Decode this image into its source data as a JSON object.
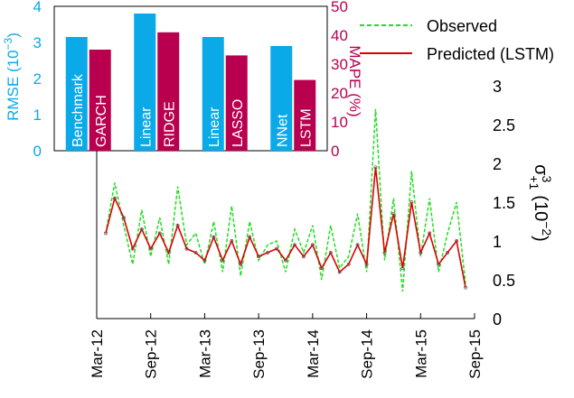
{
  "chart_data": [
    {
      "type": "line",
      "legend": {
        "placement": "top-right",
        "entries": [
          {
            "label": "Observed",
            "color": "#22dd22",
            "style": "dashed"
          },
          {
            "label": "Predicted (LSTM)",
            "color": "#dd0000",
            "style": "solid"
          }
        ]
      },
      "ylabel": "σ",
      "ylabel_sup": "3",
      "ylabel_sub": "+1",
      "ylabel_unit": "(10",
      "ylabel_unit_exp": "−2",
      "ylabel_unit_close": ")",
      "ylim": [
        0,
        3
      ],
      "yticks": [
        "0",
        "0.5",
        "1",
        "1.5",
        "2",
        "2.5",
        "3"
      ],
      "xticks": [
        "Mar-12",
        "Sep-12",
        "Mar-13",
        "Sep-13",
        "Mar-14",
        "Sep-14",
        "Mar-15",
        "Sep-15"
      ],
      "xlim": [
        "2012-03",
        "2015-09"
      ],
      "series": [
        {
          "name": "Observed",
          "color": "#22dd22",
          "x": [
            "2012-04",
            "2012-05",
            "2012-06",
            "2012-07",
            "2012-08",
            "2012-09",
            "2012-10",
            "2012-11",
            "2012-12",
            "2013-01",
            "2013-02",
            "2013-03",
            "2013-04",
            "2013-05",
            "2013-06",
            "2013-07",
            "2013-08",
            "2013-09",
            "2013-10",
            "2013-11",
            "2013-12",
            "2014-01",
            "2014-02",
            "2014-03",
            "2014-04",
            "2014-05",
            "2014-06",
            "2014-07",
            "2014-08",
            "2014-09",
            "2014-10",
            "2014-11",
            "2014-12",
            "2015-01",
            "2015-02",
            "2015-03",
            "2015-04",
            "2015-05",
            "2015-06",
            "2015-07",
            "2015-08"
          ],
          "values": [
            1.1,
            1.75,
            1.2,
            0.7,
            1.4,
            0.8,
            1.3,
            0.7,
            1.7,
            0.95,
            1.1,
            0.7,
            1.25,
            0.6,
            1.45,
            0.55,
            1.25,
            0.75,
            0.95,
            1.0,
            0.6,
            1.15,
            0.85,
            1.2,
            0.5,
            1.2,
            0.65,
            0.8,
            1.35,
            0.6,
            2.7,
            0.75,
            1.55,
            0.35,
            1.9,
            0.8,
            1.55,
            0.6,
            1.1,
            1.5,
            0.45
          ]
        },
        {
          "name": "Predicted (LSTM)",
          "color": "#dd0000",
          "x": [
            "2012-04",
            "2012-05",
            "2012-06",
            "2012-07",
            "2012-08",
            "2012-09",
            "2012-10",
            "2012-11",
            "2012-12",
            "2013-01",
            "2013-02",
            "2013-03",
            "2013-04",
            "2013-05",
            "2013-06",
            "2013-07",
            "2013-08",
            "2013-09",
            "2013-10",
            "2013-11",
            "2013-12",
            "2014-01",
            "2014-02",
            "2014-03",
            "2014-04",
            "2014-05",
            "2014-06",
            "2014-07",
            "2014-08",
            "2014-09",
            "2014-10",
            "2014-11",
            "2014-12",
            "2015-01",
            "2015-02",
            "2015-03",
            "2015-04",
            "2015-05",
            "2015-06",
            "2015-07",
            "2015-08"
          ],
          "values": [
            1.1,
            1.55,
            1.3,
            0.9,
            1.15,
            0.9,
            1.1,
            0.85,
            1.2,
            0.9,
            0.85,
            0.75,
            1.05,
            0.75,
            1.0,
            0.7,
            1.05,
            0.8,
            0.85,
            0.9,
            0.75,
            0.95,
            0.8,
            0.95,
            0.65,
            0.85,
            0.6,
            0.7,
            0.95,
            0.7,
            1.95,
            0.85,
            1.35,
            0.65,
            1.5,
            0.85,
            1.1,
            0.7,
            0.85,
            1.0,
            0.4
          ]
        }
      ]
    },
    {
      "type": "bar",
      "categories": [
        {
          "left": "Benchmark",
          "right": "GARCH"
        },
        {
          "left": "Linear",
          "right": "RIDGE"
        },
        {
          "left": "Linear",
          "right": "LASSO"
        },
        {
          "left": "NNet",
          "right": "LSTM"
        }
      ],
      "series": [
        {
          "color": "#0aa9e8",
          "axis": "left",
          "values": [
            3.15,
            3.8,
            3.15,
            2.9
          ]
        },
        {
          "color": "#b8004f",
          "axis": "right",
          "values": [
            35,
            41,
            33,
            24.5
          ]
        }
      ],
      "left_axis": {
        "label": "RMSE (10",
        "label_exp": "−3",
        "label_close": ")",
        "ylim": [
          0,
          4
        ],
        "ticks": [
          "0",
          "1",
          "2",
          "3",
          "4"
        ],
        "color": "#0aa9e8"
      },
      "right_axis": {
        "label": "MAPE (%)",
        "ylim": [
          0,
          50
        ],
        "ticks": [
          "0",
          "10",
          "20",
          "30",
          "40",
          "50"
        ],
        "color": "#b8004f"
      }
    }
  ]
}
